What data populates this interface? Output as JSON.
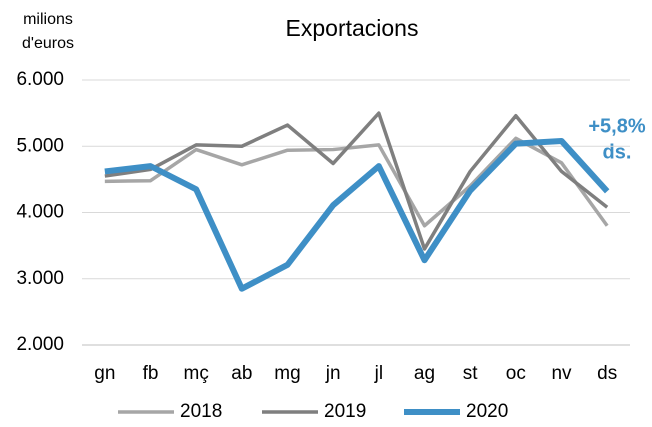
{
  "chart_data": {
    "type": "line",
    "title": "Exportacions",
    "y_label": [
      "milions",
      "d'euros"
    ],
    "categories": [
      "gn",
      "fb",
      "mç",
      "ab",
      "mg",
      "jn",
      "jl",
      "ag",
      "st",
      "oc",
      "nv",
      "ds"
    ],
    "series": [
      {
        "name": "2018",
        "color": "#a6a6a6",
        "values": [
          4470,
          4480,
          4950,
          4720,
          4940,
          4950,
          5020,
          3800,
          4400,
          5120,
          4750,
          3800
        ]
      },
      {
        "name": "2019",
        "color": "#7f7f7f",
        "values": [
          4550,
          4650,
          5020,
          5000,
          5320,
          4740,
          5500,
          3450,
          4620,
          5460,
          4620,
          4080
        ]
      },
      {
        "name": "2020",
        "color": "#3e8fc6",
        "values": [
          4620,
          4700,
          4350,
          2850,
          3210,
          4110,
          4700,
          3280,
          4330,
          5040,
          5080,
          4320
        ]
      }
    ],
    "ylim": [
      2000,
      6000
    ],
    "yticks": [
      {
        "value": 2000,
        "label": "2.000"
      },
      {
        "value": 3000,
        "label": "3.000"
      },
      {
        "value": 4000,
        "label": "4.000"
      },
      {
        "value": 5000,
        "label": "5.000"
      },
      {
        "value": 6000,
        "label": "6.000"
      }
    ],
    "grid": true,
    "legend": "bottom",
    "annotation": [
      "+5,8%",
      "ds."
    ]
  }
}
